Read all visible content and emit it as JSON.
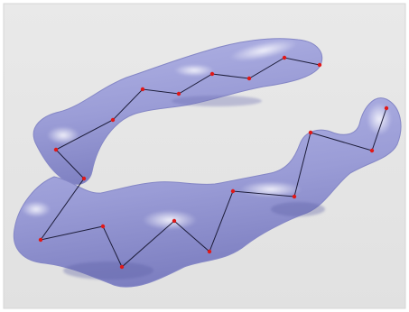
{
  "scene": {
    "background_color": "#ebebeb",
    "surface_color": "#9c9ed6",
    "surface_highlight_color": "#e4e5f6",
    "surface_shadow_color": "#6a6cb0",
    "backbone_line_color": "#1d1d3a",
    "atom_color": "#e01818",
    "atom_count": 19
  }
}
